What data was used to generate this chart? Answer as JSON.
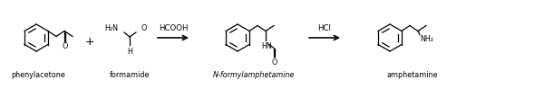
{
  "fig_width": 6.0,
  "fig_height": 0.99,
  "dpi": 100,
  "label_phenylacetone": "phenylacetone",
  "label_formamide": "formamide",
  "label_nformyl": "N-formylamphetamine",
  "label_amphetamine": "amphetamine",
  "label_plus": "+",
  "label_reagent1": "HCOOH",
  "label_reagent2": "HCl",
  "line_color": "#000000",
  "font_size_label": 5.8,
  "font_size_reagent": 6.2,
  "font_size_atom": 5.8,
  "font_size_plus": 9
}
